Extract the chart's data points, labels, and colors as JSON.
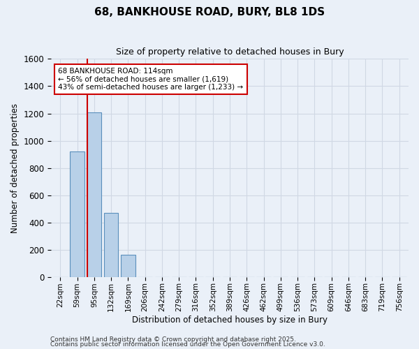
{
  "title": "68, BANKHOUSE ROAD, BURY, BL8 1DS",
  "subtitle": "Size of property relative to detached houses in Bury",
  "xlabel": "Distribution of detached houses by size in Bury",
  "ylabel": "Number of detached properties",
  "categories": [
    "22sqm",
    "59sqm",
    "95sqm",
    "132sqm",
    "169sqm",
    "206sqm",
    "242sqm",
    "279sqm",
    "316sqm",
    "352sqm",
    "389sqm",
    "426sqm",
    "462sqm",
    "499sqm",
    "536sqm",
    "573sqm",
    "609sqm",
    "646sqm",
    "683sqm",
    "719sqm",
    "756sqm"
  ],
  "values": [
    0,
    920,
    1210,
    470,
    160,
    0,
    0,
    0,
    0,
    0,
    0,
    0,
    0,
    0,
    0,
    0,
    0,
    0,
    0,
    0,
    0
  ],
  "bar_color": "#b8d0e8",
  "bar_edge_color": "#5a8fbc",
  "ylim": [
    0,
    1600
  ],
  "yticks": [
    0,
    200,
    400,
    600,
    800,
    1000,
    1200,
    1400,
    1600
  ],
  "ann_line1": "68 BANKHOUSE ROAD: 114sqm",
  "ann_line2": "← 56% of detached houses are smaller (1,619)",
  "ann_line3": "43% of semi-detached houses are larger (1,233) →",
  "vline_x_index": 2.0,
  "annotation_box_color": "#cc0000",
  "background_color": "#eaf0f8",
  "grid_color": "#d0d8e4",
  "footer_line1": "Contains HM Land Registry data © Crown copyright and database right 2025.",
  "footer_line2": "Contains public sector information licensed under the Open Government Licence v3.0."
}
